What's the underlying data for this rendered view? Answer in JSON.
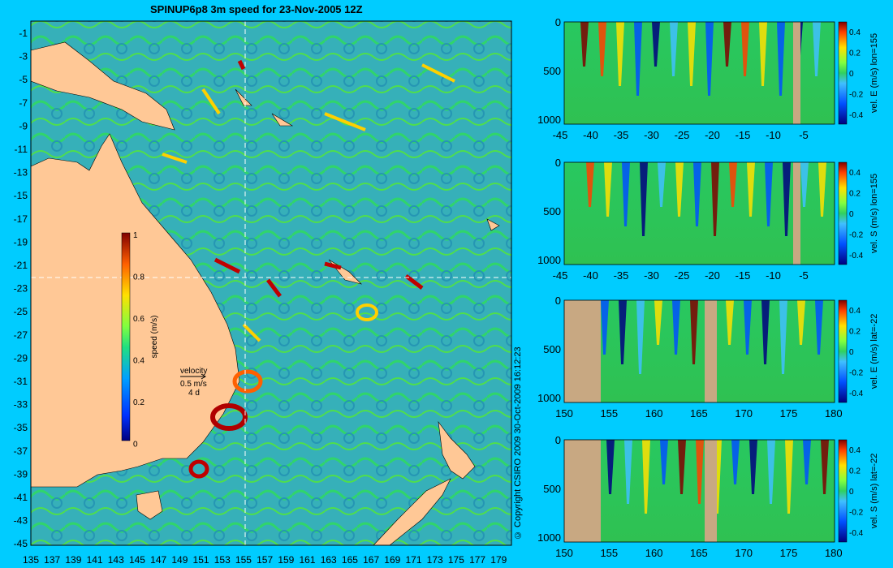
{
  "title": "SPINUP6p8 3m speed for 23-Nov-2005 12Z",
  "copyright": "© Copyright CSIRO 2009   30-Oct-2009 16:12:23",
  "colors": {
    "background": "#00ccff",
    "land": "#ffc896",
    "section_land": "#c8a882"
  },
  "map": {
    "lon_ticks": [
      "135",
      "137",
      "139",
      "141",
      "143",
      "145",
      "147",
      "149",
      "151",
      "153",
      "155",
      "157",
      "159",
      "161",
      "163",
      "165",
      "167",
      "169",
      "171",
      "173",
      "175",
      "177",
      "179"
    ],
    "lat_ticks": [
      "-1",
      "-3",
      "-5",
      "-7",
      "-9",
      "-11",
      "-13",
      "-15",
      "-17",
      "-19",
      "-21",
      "-23",
      "-25",
      "-27",
      "-29",
      "-31",
      "-33",
      "-35",
      "-37",
      "-39",
      "-41",
      "-43",
      "-45"
    ],
    "crosshair": {
      "lon": 155,
      "lat": -22
    },
    "colorbar": {
      "label": "speed (m/s)",
      "ticks": [
        "1",
        "0.8",
        "0.6",
        "0.4",
        "0.2",
        "0"
      ]
    },
    "velocity_key": {
      "title": "velocity",
      "speed": "0.5 m/s",
      "duration": "4 d"
    }
  },
  "sections": [
    {
      "name": "vel-e-lon155",
      "label": "vel. E (m/s) lon=155",
      "x_ticks": [
        "-45",
        "-40",
        "-35",
        "-30",
        "-25",
        "-20",
        "-15",
        "-10",
        "-5"
      ],
      "y_ticks": [
        "0",
        "500",
        "1000"
      ],
      "cbar_ticks": [
        "0.4",
        "0.2",
        "0",
        "-0.2",
        "-0.4"
      ]
    },
    {
      "name": "vel-s-lon155",
      "label": "vel. S (m/s) lon=155",
      "x_ticks": [
        "-45",
        "-40",
        "-35",
        "-30",
        "-25",
        "-20",
        "-15",
        "-10",
        "-5"
      ],
      "y_ticks": [
        "0",
        "500",
        "1000"
      ],
      "cbar_ticks": [
        "0.4",
        "0.2",
        "0",
        "-0.2",
        "-0.4"
      ]
    },
    {
      "name": "vel-e-lat-22",
      "label": "vel. E (m/s) lat=-22",
      "x_ticks": [
        "150",
        "155",
        "160",
        "165",
        "170",
        "175",
        "180"
      ],
      "y_ticks": [
        "0",
        "500",
        "1000"
      ],
      "cbar_ticks": [
        "0.4",
        "0.2",
        "0",
        "-0.2",
        "-0.4"
      ]
    },
    {
      "name": "vel-s-lat-22",
      "label": "vel. S (m/s) lat=-22",
      "x_ticks": [
        "150",
        "155",
        "160",
        "165",
        "170",
        "175",
        "180"
      ],
      "y_ticks": [
        "0",
        "500",
        "1000"
      ],
      "cbar_ticks": [
        "0.4",
        "0.2",
        "0",
        "-0.2",
        "-0.4"
      ]
    }
  ]
}
